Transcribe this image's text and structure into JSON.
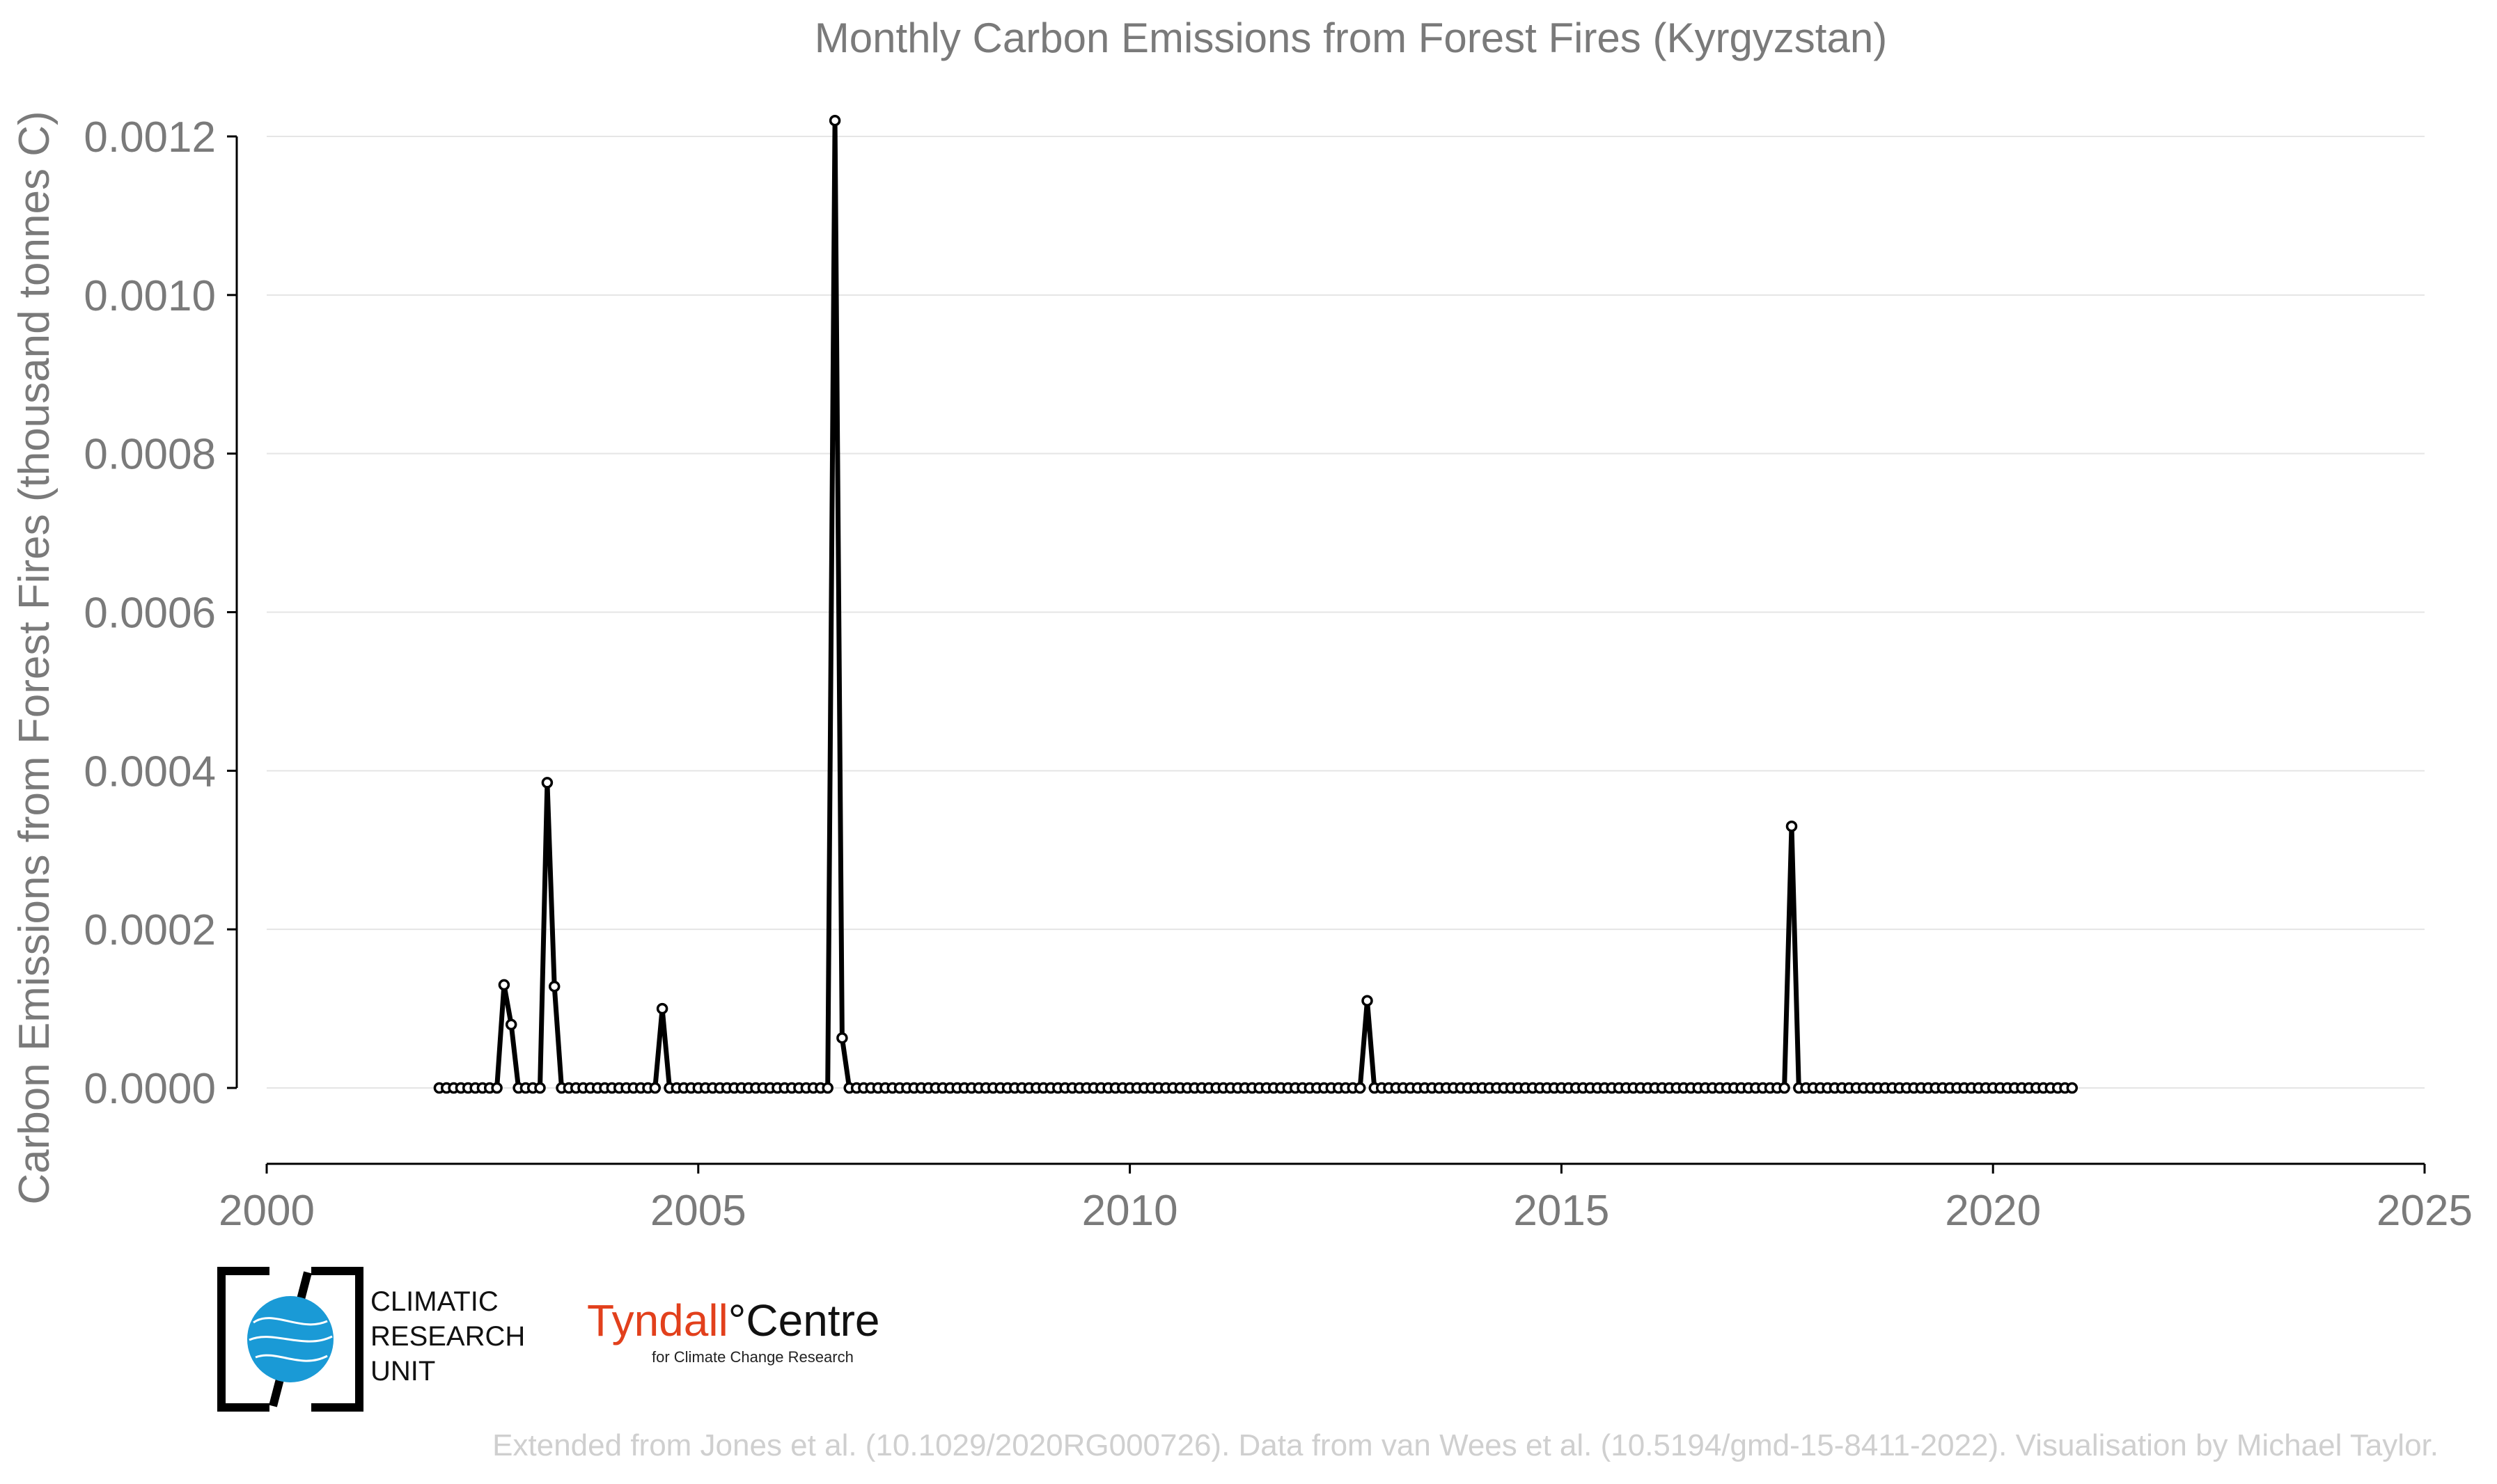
{
  "chart_data": {
    "type": "line",
    "title": "Monthly Carbon Emissions from Forest Fires (Kyrgyzstan)",
    "xlabel": "",
    "ylabel": "Carbon Emissions from Forest Fires (thousand tonnes C)",
    "xlim": [
      2000,
      2025
    ],
    "ylim": [
      0,
      0.0012
    ],
    "x_ticks": [
      "2000",
      "2005",
      "2010",
      "2015",
      "2020",
      "2025"
    ],
    "y_ticks": [
      "0.0000",
      "0.0002",
      "0.0004",
      "0.0006",
      "0.0008",
      "0.0010",
      "0.0012"
    ],
    "grid": true,
    "series": [
      {
        "color": "#000000",
        "start": "2002-01",
        "end": "2020-12",
        "values_nonzero": [
          {
            "x": "2002-10",
            "y": 0.00013
          },
          {
            "x": "2002-11",
            "y": 8e-05
          },
          {
            "x": "2003-04",
            "y": 0.000385
          },
          {
            "x": "2003-05",
            "y": 0.000128
          },
          {
            "x": "2004-08",
            "y": 0.0001
          },
          {
            "x": "2006-08",
            "y": 0.00122
          },
          {
            "x": "2006-09",
            "y": 6.3e-05
          },
          {
            "x": "2012-10",
            "y": 0.00011
          },
          {
            "x": "2017-09",
            "y": 0.00033
          }
        ]
      }
    ]
  },
  "logos": {
    "cru_lines": [
      "CLIMATIC",
      "RESEARCH",
      "UNIT"
    ],
    "tyndall_main": "Tyndall",
    "tyndall_deg": "°",
    "tyndall_centre": "Centre",
    "tyndall_sub": "for Climate Change Research"
  },
  "credit": "Extended from Jones et al. (10.1029/2020RG000726). Data from van Wees et al. (10.5194/gmd-15-8411-2022). Visualisation by Michael Taylor.",
  "colors": {
    "line": "#000000",
    "text": "#7a7a7a",
    "grid": "#e5e5e5",
    "cru_blue": "#1a9ad6",
    "tyndall_red": "#e2401c"
  }
}
